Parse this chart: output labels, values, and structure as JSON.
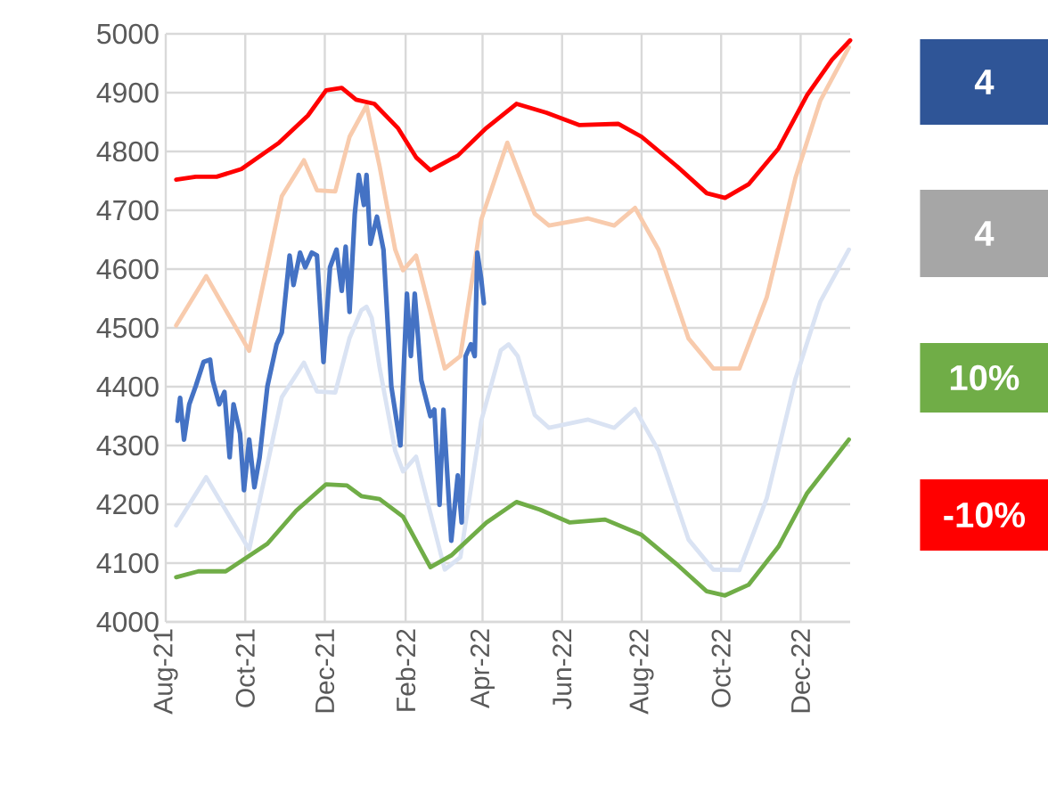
{
  "chart_data": {
    "type": "line",
    "xlim": [
      "2021-08-01",
      "2023-01-08"
    ],
    "xticks": [
      {
        "value": "2021-08-01",
        "label": "Aug-21"
      },
      {
        "value": "2021-10-01",
        "label": "Oct-21"
      },
      {
        "value": "2021-12-01",
        "label": "Dec-21"
      },
      {
        "value": "2022-02-01",
        "label": "Feb-22"
      },
      {
        "value": "2022-04-01",
        "label": "Apr-22"
      },
      {
        "value": "2022-06-01",
        "label": "Jun-22"
      },
      {
        "value": "2022-08-01",
        "label": "Aug-22"
      },
      {
        "value": "2022-10-01",
        "label": "Oct-22"
      },
      {
        "value": "2022-12-01",
        "label": "Dec-22"
      }
    ],
    "ylim": [
      4000,
      5000
    ],
    "yticks": [
      4000,
      4100,
      4200,
      4300,
      4400,
      4500,
      4600,
      4700,
      4800,
      4900,
      5000
    ],
    "grid": true,
    "marker": "none",
    "line_style": "solid",
    "annotations": [
      "4",
      "4",
      "10%",
      "-10%"
    ],
    "series": [
      {
        "color": "#f8cbad",
        "x": [
          "2021-08-09",
          "2021-09-01",
          "2021-10-04",
          "2021-10-29",
          "2021-11-15",
          "2021-11-25",
          "2021-12-09",
          "2021-12-20",
          "2022-01-02",
          "2022-01-12",
          "2022-01-24",
          "2022-01-30",
          "2022-02-09",
          "2022-03-03",
          "2022-03-15",
          "2022-03-31",
          "2022-04-20",
          "2022-05-11",
          "2022-05-22",
          "2022-06-21",
          "2022-07-11",
          "2022-07-27",
          "2022-08-14",
          "2022-09-06",
          "2022-09-25",
          "2022-10-15",
          "2022-11-05",
          "2022-11-27",
          "2022-12-16",
          "2023-01-07"
        ],
        "values": [
          4504,
          4588,
          4461,
          4724,
          4785,
          4734,
          4732,
          4825,
          4878,
          4775,
          4633,
          4598,
          4623,
          4431,
          4452,
          4684,
          4815,
          4694,
          4674,
          4686,
          4674,
          4704,
          4633,
          4482,
          4431,
          4431,
          4552,
          4755,
          4886,
          4977
        ]
      },
      {
        "color": "#dae3f3",
        "x": [
          "2021-08-09",
          "2021-09-01",
          "2021-10-04",
          "2021-10-29",
          "2021-11-15",
          "2021-11-25",
          "2021-12-09",
          "2021-12-20",
          "2021-12-29",
          "2022-01-02",
          "2022-01-06",
          "2022-01-12",
          "2022-01-24",
          "2022-01-30",
          "2022-02-09",
          "2022-03-03",
          "2022-03-15",
          "2022-03-31",
          "2022-04-15",
          "2022-04-21",
          "2022-04-28",
          "2022-05-11",
          "2022-05-22",
          "2022-06-21",
          "2022-07-11",
          "2022-07-27",
          "2022-08-14",
          "2022-09-06",
          "2022-09-25",
          "2022-10-15",
          "2022-11-05",
          "2022-11-27",
          "2022-12-16",
          "2023-01-07"
        ],
        "values": [
          4164,
          4246,
          4123,
          4382,
          4441,
          4392,
          4390,
          4483,
          4530,
          4536,
          4517,
          4433,
          4291,
          4256,
          4281,
          4089,
          4110,
          4342,
          4462,
          4472,
          4452,
          4352,
          4330,
          4344,
          4330,
          4362,
          4291,
          4140,
          4089,
          4088,
          4210,
          4413,
          4544,
          4633
        ]
      },
      {
        "color": "#ff0000",
        "x": [
          "2021-08-09",
          "2021-08-24",
          "2021-09-09",
          "2021-09-28",
          "2021-10-27",
          "2021-11-18",
          "2021-12-02",
          "2021-12-14",
          "2021-12-25",
          "2022-01-08",
          "2022-01-26",
          "2022-02-09",
          "2022-02-20",
          "2022-03-13",
          "2022-04-04",
          "2022-04-27",
          "2022-05-20",
          "2022-06-14",
          "2022-07-14",
          "2022-08-01",
          "2022-08-28",
          "2022-09-20",
          "2022-10-04",
          "2022-10-22",
          "2022-11-14",
          "2022-12-06",
          "2022-12-25",
          "2023-01-08"
        ],
        "values": [
          4752,
          4757,
          4757,
          4770,
          4815,
          4861,
          4904,
          4908,
          4888,
          4881,
          4840,
          4790,
          4768,
          4793,
          4840,
          4881,
          4866,
          4845,
          4847,
          4825,
          4775,
          4729,
          4721,
          4744,
          4805,
          4896,
          4956,
          4989
        ]
      },
      {
        "color": "#70ad47",
        "x": [
          "2021-08-09",
          "2021-08-26",
          "2021-09-16",
          "2021-10-18",
          "2021-11-09",
          "2021-12-02",
          "2021-12-18",
          "2021-12-29",
          "2022-01-12",
          "2022-01-30",
          "2022-02-20",
          "2022-03-08",
          "2022-04-04",
          "2022-04-27",
          "2022-05-15",
          "2022-06-07",
          "2022-07-04",
          "2022-08-01",
          "2022-08-28",
          "2022-09-20",
          "2022-10-04",
          "2022-10-22",
          "2022-11-14",
          "2022-12-06",
          "2023-01-07"
        ],
        "values": [
          4076,
          4086,
          4086,
          4133,
          4189,
          4234,
          4232,
          4214,
          4209,
          4179,
          4093,
          4113,
          4169,
          4204,
          4191,
          4169,
          4174,
          4148,
          4098,
          4052,
          4045,
          4063,
          4128,
          4219,
          4310
        ]
      },
      {
        "color": "#4472c4",
        "x": [
          "2021-08-10",
          "2021-08-12",
          "2021-08-15",
          "2021-08-19",
          "2021-08-24",
          "2021-08-30",
          "2021-09-04",
          "2021-09-06",
          "2021-09-11",
          "2021-09-15",
          "2021-09-19",
          "2021-09-22",
          "2021-09-27",
          "2021-09-30",
          "2021-10-04",
          "2021-10-08",
          "2021-10-12",
          "2021-10-18",
          "2021-10-25",
          "2021-10-29",
          "2021-11-04",
          "2021-11-07",
          "2021-11-12",
          "2021-11-16",
          "2021-11-21",
          "2021-11-25",
          "2021-11-30",
          "2021-12-05",
          "2021-12-10",
          "2021-12-14",
          "2021-12-17",
          "2021-12-20",
          "2021-12-24",
          "2021-12-27",
          "2021-12-31",
          "2022-01-02",
          "2022-01-05",
          "2022-01-10",
          "2022-01-15",
          "2022-01-21",
          "2022-01-28",
          "2022-02-02",
          "2022-02-05",
          "2022-02-08",
          "2022-02-13",
          "2022-02-20",
          "2022-02-23",
          "2022-02-27",
          "2022-03-02",
          "2022-03-08",
          "2022-03-13",
          "2022-03-16",
          "2022-03-19",
          "2022-03-23",
          "2022-03-26",
          "2022-03-28",
          "2022-03-31",
          "2022-04-02"
        ],
        "values": [
          4342,
          4381,
          4310,
          4370,
          4401,
          4442,
          4446,
          4411,
          4370,
          4391,
          4280,
          4370,
          4320,
          4224,
          4310,
          4229,
          4280,
          4401,
          4472,
          4492,
          4623,
          4573,
          4628,
          4603,
          4628,
          4623,
          4442,
          4603,
          4633,
          4563,
          4638,
          4527,
          4694,
          4760,
          4709,
          4760,
          4643,
          4689,
          4633,
          4401,
          4300,
          4558,
          4452,
          4558,
          4411,
          4350,
          4361,
          4199,
          4361,
          4138,
          4249,
          4169,
          4452,
          4472,
          4452,
          4628,
          4583,
          4542
        ]
      }
    ]
  }
}
